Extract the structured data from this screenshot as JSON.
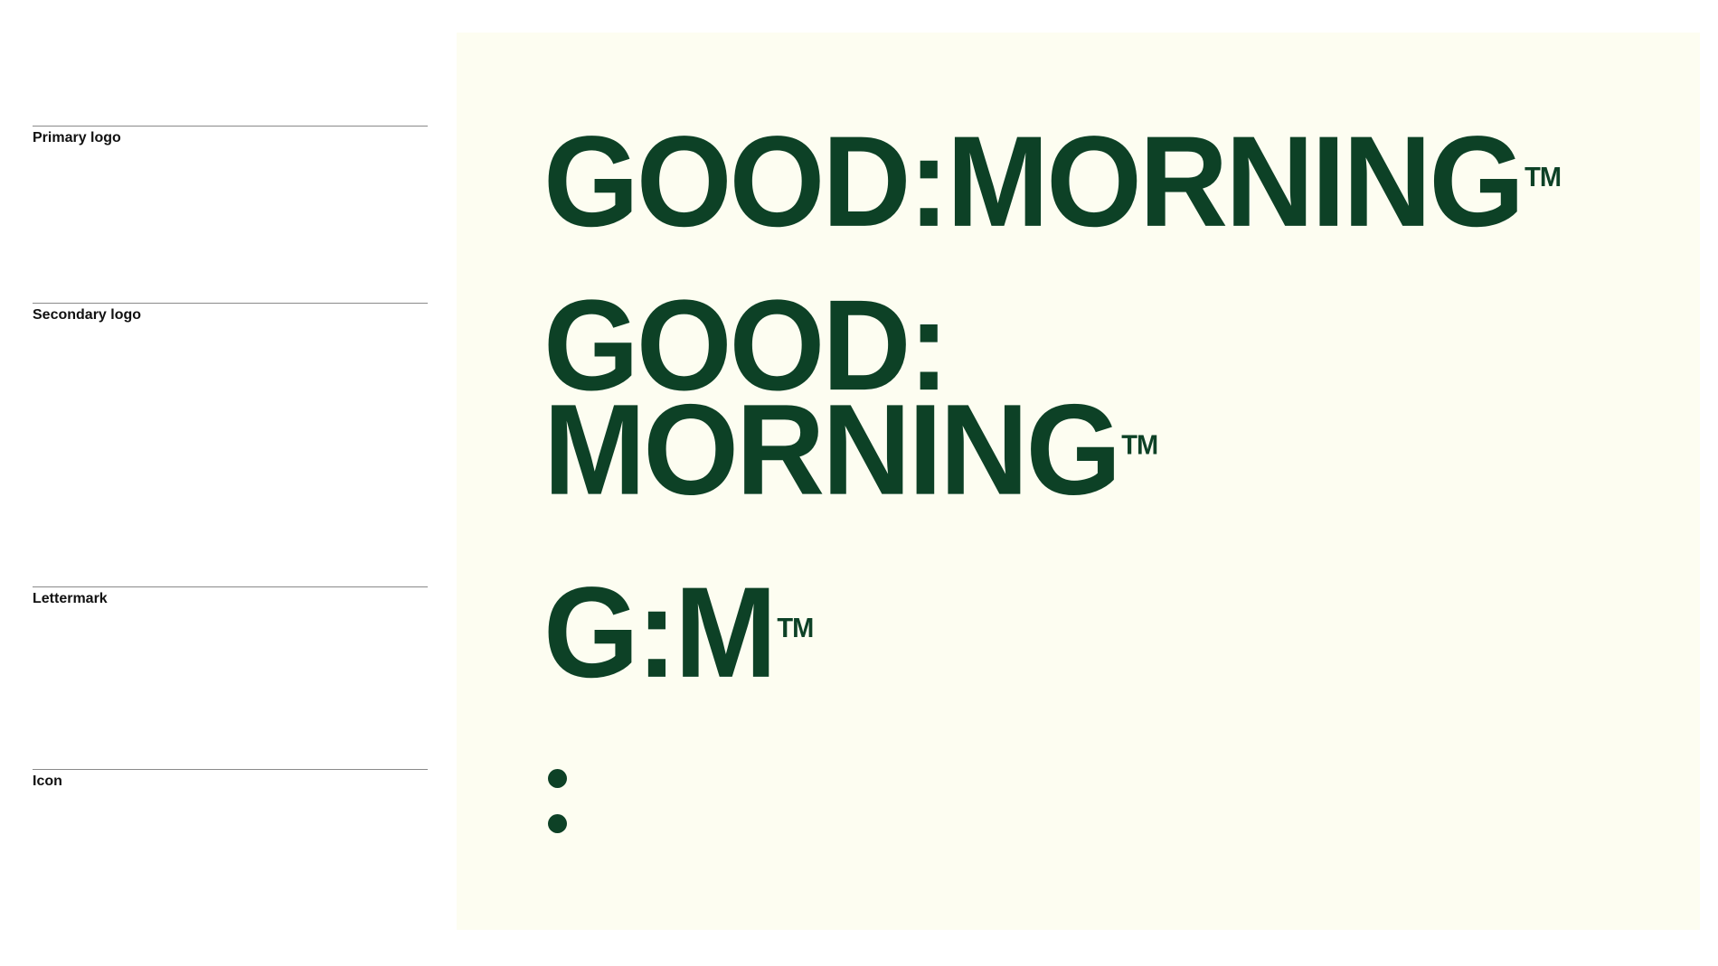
{
  "labels": {
    "primary": "Primary logo",
    "secondary": "Secondary logo",
    "lettermark": "Lettermark",
    "icon": "Icon"
  },
  "logos": {
    "primary": {
      "text": "GOOD:MORNING",
      "tm": "TM"
    },
    "secondary": {
      "line1": "GOOD:",
      "line2": "MORNING",
      "tm": "TM"
    },
    "lettermark": {
      "text": "G:M",
      "tm": "TM"
    },
    "icon": {
      "symbol": "colon-icon"
    }
  },
  "colors": {
    "brand_green": "#0d4126",
    "panel_background": "#fdfdf1",
    "page_background": "#ffffff",
    "rule": "#8a8a8a"
  }
}
